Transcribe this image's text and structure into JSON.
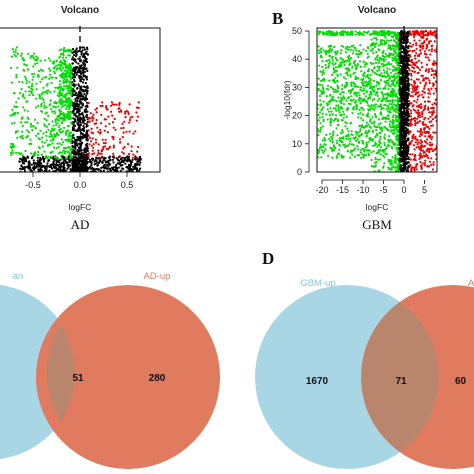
{
  "chart_data": [
    {
      "panel": "",
      "type": "scatter",
      "title": "Volcano",
      "xlabel": "logFC",
      "ylabel": "",
      "caption": "AD",
      "xticks": [
        "-0.5",
        "0.0",
        "0.5"
      ],
      "x_range": [
        -0.85,
        0.85
      ],
      "y_range": [
        0,
        52
      ],
      "series": [
        {
          "color": "#00dd00",
          "x_range": [
            -0.8,
            -0.08
          ],
          "y_range": [
            0,
            48
          ]
        },
        {
          "color": "#000000",
          "x_range": [
            -0.08,
            0.08
          ],
          "y_range": [
            0,
            50
          ]
        },
        {
          "color": "#ee0000",
          "x_range": [
            0.08,
            0.7
          ],
          "y_range": [
            0,
            30
          ]
        }
      ],
      "dashed_vline_x": 0
    },
    {
      "panel": "B",
      "type": "scatter",
      "title": "Volcano",
      "xlabel": "logFC",
      "ylabel": "-log10(fdr)",
      "caption": "GBM",
      "xticks": [
        "-20",
        "-15",
        "-10",
        "-5",
        "0",
        "5"
      ],
      "yticks": [
        "0",
        "10",
        "20",
        "30",
        "40",
        "50"
      ],
      "x_range": [
        -22,
        10
      ],
      "y_range": [
        0,
        52
      ],
      "series": [
        {
          "color": "#00dd00",
          "x_range": [
            -21,
            -1
          ],
          "y_range": [
            0,
            50
          ]
        },
        {
          "color": "#000000",
          "x_range": [
            -1,
            1
          ],
          "y_range": [
            0,
            50
          ]
        },
        {
          "color": "#ee0000",
          "x_range": [
            1,
            8
          ],
          "y_range": [
            0,
            50
          ]
        }
      ],
      "dashed_vline_x": 0
    },
    {
      "panel": "",
      "type": "venn",
      "left_label": "an",
      "right_label": "AD-up",
      "left_only": "",
      "overlap": "51",
      "right_only": "280"
    },
    {
      "panel": "D",
      "type": "venn",
      "left_label": "GBM-up",
      "right_label": "Al",
      "left_only": "1670",
      "overlap": "71",
      "right_only": "60"
    }
  ],
  "colors": {
    "down": "#00dd00",
    "neutral": "#000000",
    "up": "#ee0000",
    "venn_left": "#a9d6e5",
    "venn_right": "#e07b5f",
    "venn_overlap": "#b9866d"
  }
}
